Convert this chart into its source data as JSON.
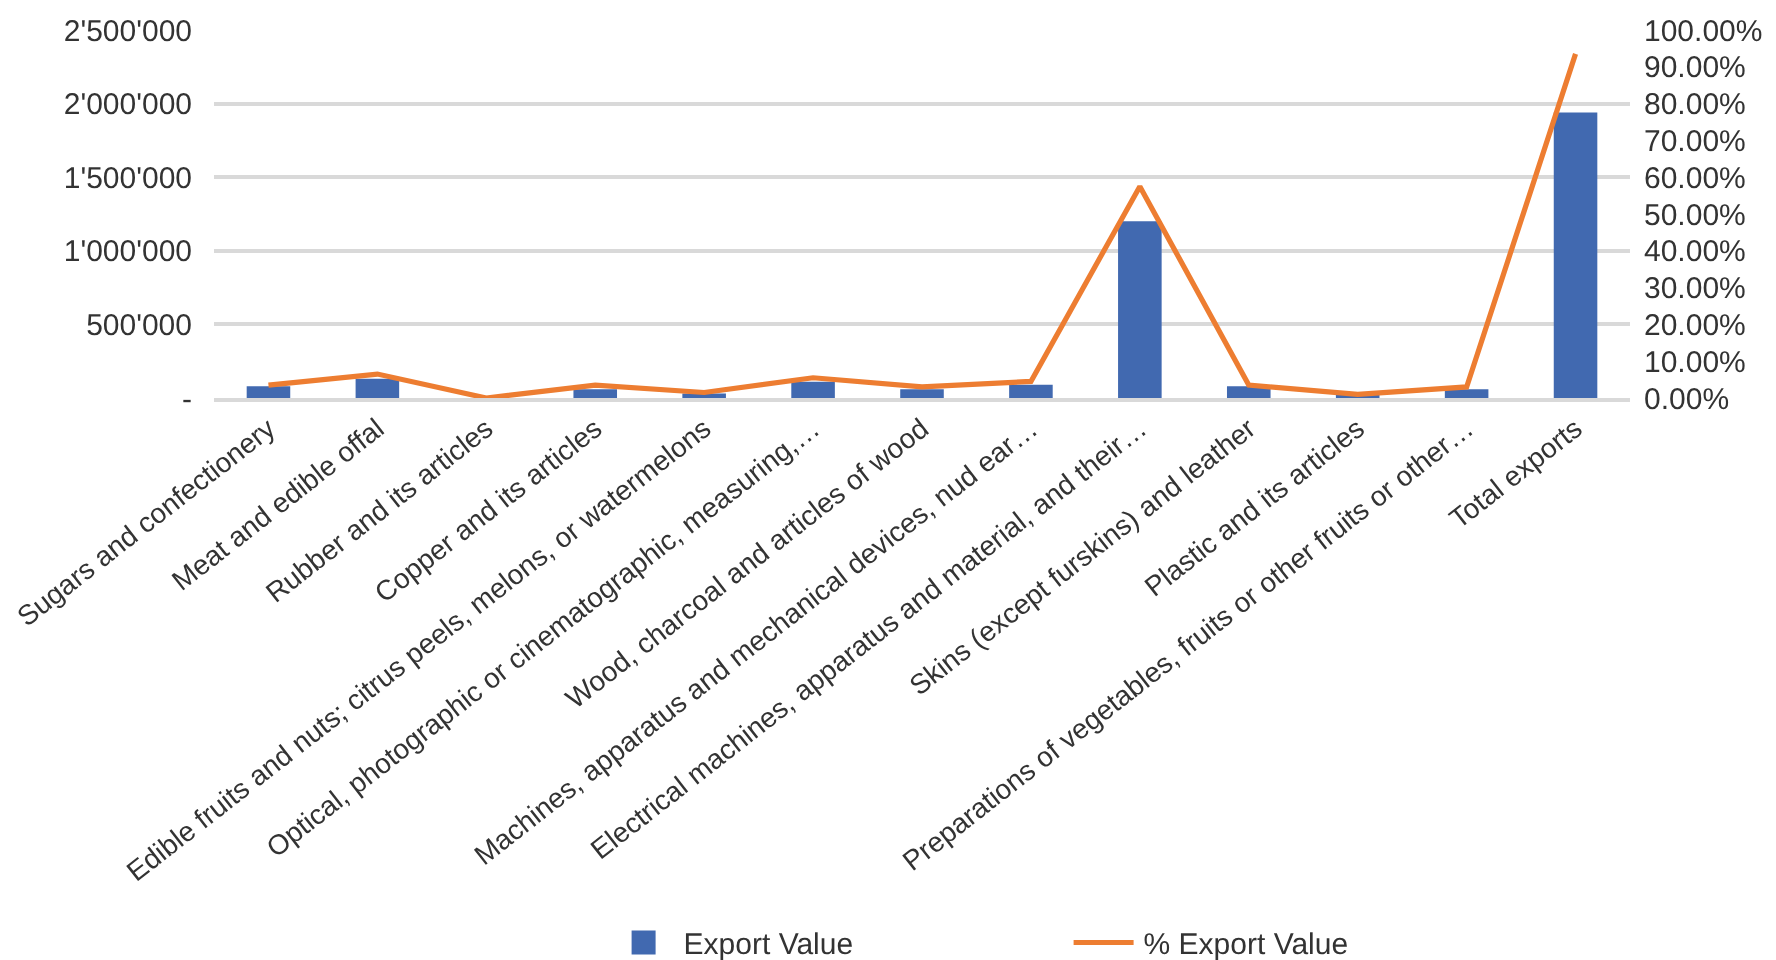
{
  "chart_data": {
    "type": "bar",
    "categories": [
      "Sugars and confectionery",
      "Meat and edible offal",
      "Rubber and its articles",
      "Copper and its articles",
      "Edible fruits and nuts; citrus peels, melons, or watermelons",
      "Optical, photographic or cinematographic, measuring,…",
      "Wood, charcoal and articles of wood",
      "Machines, apparatus and mechanical devices, nud ear…",
      "Electrical machines, apparatus and material, and their…",
      "Skins (except furskins) and leather",
      "Plastic and its articles",
      "Preparations of vegetables, fruits or other fruits or other…",
      "Total exports"
    ],
    "series": [
      {
        "name": "Export Value",
        "color": "#4169b0",
        "values": [
          80000,
          130000,
          0,
          60000,
          30000,
          110000,
          60000,
          90000,
          1200000,
          80000,
          30000,
          60000,
          1940000
        ]
      },
      {
        "name": "% Export Value",
        "type": "line",
        "axis": "y2",
        "color": "#ed7d31",
        "values": [
          3.5,
          6.5,
          0,
          3.5,
          1.5,
          5.5,
          3,
          4.5,
          57.5,
          3.5,
          1,
          3,
          93.5
        ]
      }
    ],
    "ylim": [
      0,
      2500000
    ],
    "yticks": [
      {
        "value": 0,
        "label": "-"
      },
      {
        "value": 500000,
        "label": "500'000"
      },
      {
        "value": 1000000,
        "label": "1'000'000"
      },
      {
        "value": 1500000,
        "label": "1'500'000"
      },
      {
        "value": 2000000,
        "label": "2'000'000"
      },
      {
        "value": 2500000,
        "label": "2'500'000"
      }
    ],
    "y2lim": [
      0,
      100
    ],
    "y2ticks": [
      {
        "value": 0,
        "label": "0.00%"
      },
      {
        "value": 10,
        "label": "10.00%"
      },
      {
        "value": 20,
        "label": "20.00%"
      },
      {
        "value": 30,
        "label": "30.00%"
      },
      {
        "value": 40,
        "label": "40.00%"
      },
      {
        "value": 50,
        "label": "50.00%"
      },
      {
        "value": 60,
        "label": "60.00%"
      },
      {
        "value": 70,
        "label": "70.00%"
      },
      {
        "value": 80,
        "label": "80.00%"
      },
      {
        "value": 90,
        "label": "90.00%"
      },
      {
        "value": 100,
        "label": "100.00%"
      }
    ],
    "grid": "y",
    "legend": "bottom"
  }
}
